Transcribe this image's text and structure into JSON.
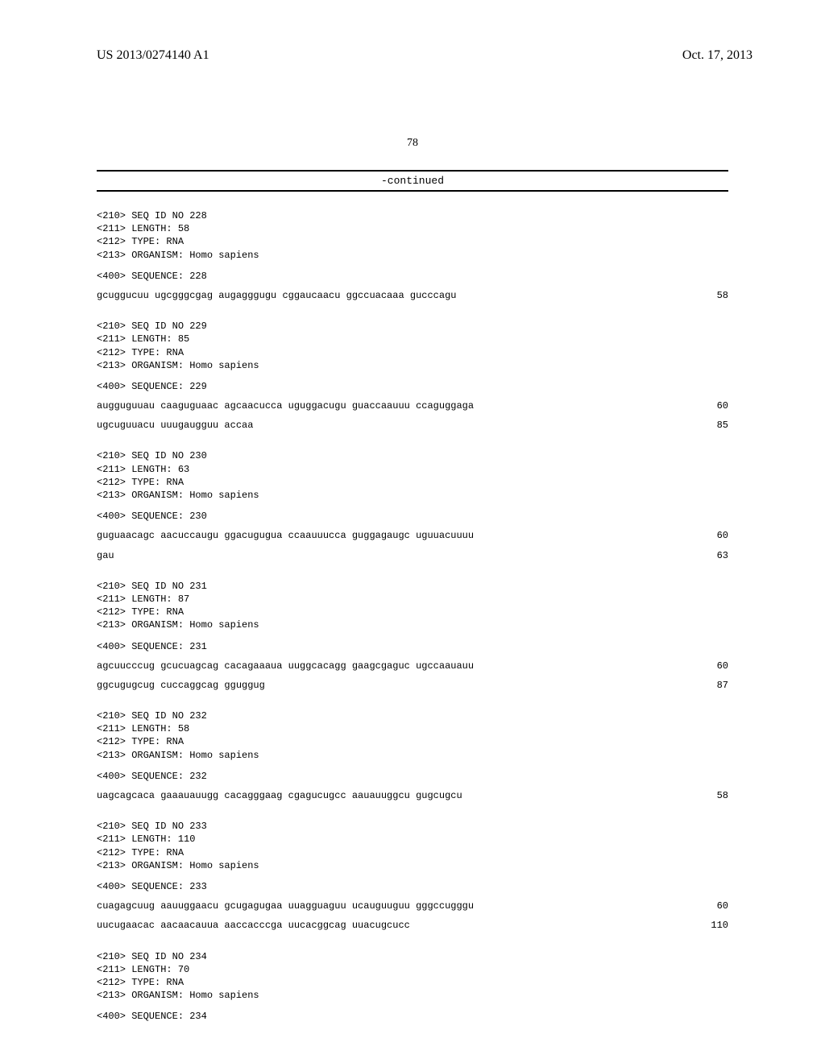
{
  "header": {
    "publication_number": "US 2013/0274140 A1",
    "publication_date": "Oct. 17, 2013",
    "page_number": "78",
    "continued_label": "-continued"
  },
  "sequences": [
    {
      "id": "228",
      "meta": [
        "<210> SEQ ID NO 228",
        "<211> LENGTH: 58",
        "<212> TYPE: RNA",
        "<213> ORGANISM: Homo sapiens"
      ],
      "sequence_label": "<400> SEQUENCE: 228",
      "lines": [
        {
          "seq": "gcuggucuu ugcgggcgag augagggugu cggaucaacu ggccuacaaa gucccagu",
          "pos": "58"
        }
      ]
    },
    {
      "id": "229",
      "meta": [
        "<210> SEQ ID NO 229",
        "<211> LENGTH: 85",
        "<212> TYPE: RNA",
        "<213> ORGANISM: Homo sapiens"
      ],
      "sequence_label": "<400> SEQUENCE: 229",
      "lines": [
        {
          "seq": "augguguuau caaguguaac agcaacucca uguggacugu guaccaauuu ccaguggaga",
          "pos": "60"
        },
        {
          "seq": "ugcuguuacu uuugaugguu accaa",
          "pos": "85"
        }
      ]
    },
    {
      "id": "230",
      "meta": [
        "<210> SEQ ID NO 230",
        "<211> LENGTH: 63",
        "<212> TYPE: RNA",
        "<213> ORGANISM: Homo sapiens"
      ],
      "sequence_label": "<400> SEQUENCE: 230",
      "lines": [
        {
          "seq": "guguaacagc aacuccaugu ggacugugua ccaauuucca guggagaugc uguuacuuuu",
          "pos": "60"
        },
        {
          "seq": "gau",
          "pos": "63"
        }
      ]
    },
    {
      "id": "231",
      "meta": [
        "<210> SEQ ID NO 231",
        "<211> LENGTH: 87",
        "<212> TYPE: RNA",
        "<213> ORGANISM: Homo sapiens"
      ],
      "sequence_label": "<400> SEQUENCE: 231",
      "lines": [
        {
          "seq": "agcuucccug gcucuagcag cacagaaaua uuggcacagg gaagcgaguc ugccaauauu",
          "pos": "60"
        },
        {
          "seq": "ggcugugcug cuccaggcag gguggug",
          "pos": "87"
        }
      ]
    },
    {
      "id": "232",
      "meta": [
        "<210> SEQ ID NO 232",
        "<211> LENGTH: 58",
        "<212> TYPE: RNA",
        "<213> ORGANISM: Homo sapiens"
      ],
      "sequence_label": "<400> SEQUENCE: 232",
      "lines": [
        {
          "seq": "uagcagcaca gaaauauugg cacagggaag cgagucugcc aauauuggcu gugcugcu",
          "pos": "58"
        }
      ]
    },
    {
      "id": "233",
      "meta": [
        "<210> SEQ ID NO 233",
        "<211> LENGTH: 110",
        "<212> TYPE: RNA",
        "<213> ORGANISM: Homo sapiens"
      ],
      "sequence_label": "<400> SEQUENCE: 233",
      "lines": [
        {
          "seq": "cuagagcuug aauuggaacu gcugagugaa uuagguaguu ucauguuguu gggccugggu",
          "pos": "60"
        },
        {
          "seq": "uucugaacac aacaacauua aaccacccga uucacggcag uuacugcucc",
          "pos": "110"
        }
      ]
    },
    {
      "id": "234",
      "meta": [
        "<210> SEQ ID NO 234",
        "<211> LENGTH: 70",
        "<212> TYPE: RNA",
        "<213> ORGANISM: Homo sapiens"
      ],
      "sequence_label": "<400> SEQUENCE: 234",
      "lines": []
    }
  ]
}
